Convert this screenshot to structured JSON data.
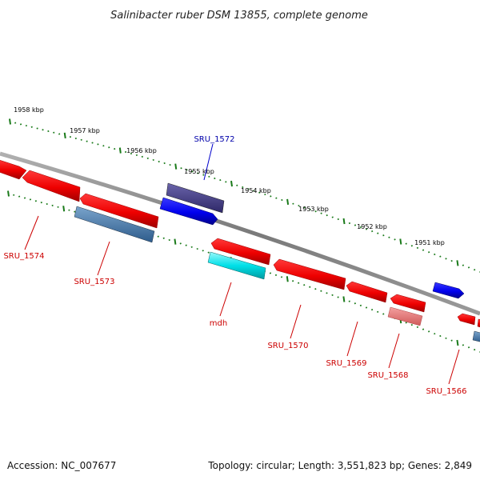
{
  "title": "Salinibacter ruber DSM 13855, complete genome",
  "footer": {
    "accession": "Accession: NC_007677",
    "summary": "Topology: circular; Length: 3,551,823 bp; Genes: 2,849"
  },
  "ticks": {
    "labels": [
      "1958 kbp",
      "1957 kbp",
      "1956 kbp",
      "1955 kbp",
      "1954 kbp",
      "1953 kbp",
      "1952 kbp",
      "1951 kbp"
    ]
  },
  "genes": {
    "sru1572": "SRU_1572",
    "sru1574": "SRU_1574",
    "sru1573": "SRU_1573",
    "mdh": "mdh",
    "sru1570": "SRU_1570",
    "sru1569": "SRU_1569",
    "sru1568": "SRU_1568",
    "sru1566": "SRU_1566"
  },
  "colors": {
    "backbone": "#8a8a8a",
    "tick": "#1a7a1a",
    "forward_blue": "#0000ee",
    "dark_blue": "#4a4488",
    "reverse_red": "#ee0000",
    "light_red": "#e87a7a",
    "steel_blue": "#4a7eb0",
    "cyan": "#00e0e8",
    "label_red": "#cc0000",
    "label_blue": "#0000aa"
  }
}
